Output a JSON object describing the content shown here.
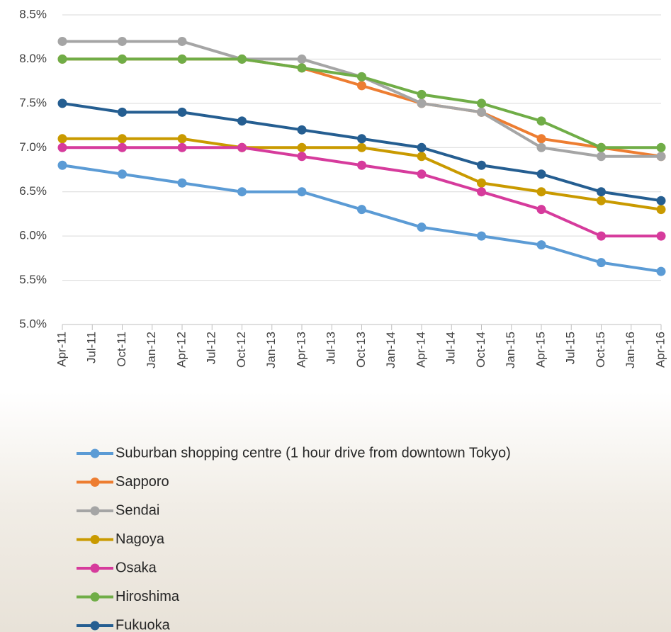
{
  "chart_data": {
    "type": "line",
    "x": [
      "Apr-11",
      "Oct-11",
      "Apr-12",
      "Oct-12",
      "Apr-13",
      "Oct-13",
      "Apr-14",
      "Oct-14",
      "Apr-15",
      "Oct-15",
      "Apr-16"
    ],
    "xticks": [
      "Apr-11",
      "Jul-11",
      "Oct-11",
      "Jan-12",
      "Apr-12",
      "Jul-12",
      "Oct-12",
      "Jan-13",
      "Apr-13",
      "Jul-13",
      "Oct-13",
      "Jan-14",
      "Apr-14",
      "Jul-14",
      "Oct-14",
      "Jan-15",
      "Apr-15",
      "Jul-15",
      "Oct-15",
      "Jan-16",
      "Apr-16"
    ],
    "ylim": [
      5.0,
      8.5
    ],
    "yticks": [
      {
        "value": 5.0,
        "label": "5.0%"
      },
      {
        "value": 5.5,
        "label": "5.5%"
      },
      {
        "value": 6.0,
        "label": "6.0%"
      },
      {
        "value": 6.5,
        "label": "6.5%"
      },
      {
        "value": 7.0,
        "label": "7.0%"
      },
      {
        "value": 7.5,
        "label": "7.5%"
      },
      {
        "value": 8.0,
        "label": "8.0%"
      },
      {
        "value": 8.5,
        "label": "8.5%"
      }
    ],
    "grid": true,
    "legend": "bottom",
    "series": [
      {
        "name": "Suburban shopping centre (1 hour drive from downtown Tokyo)",
        "color": "#5b9bd5",
        "values": [
          6.8,
          6.7,
          6.6,
          6.5,
          6.5,
          6.3,
          6.1,
          6.0,
          5.9,
          5.7,
          5.6
        ]
      },
      {
        "name": "Sapporo",
        "color": "#ed7d31",
        "values": [
          8.0,
          8.0,
          8.0,
          8.0,
          7.9,
          7.7,
          7.5,
          7.4,
          7.1,
          7.0,
          6.9
        ]
      },
      {
        "name": "Sendai",
        "color": "#a5a5a5",
        "values": [
          8.2,
          8.2,
          8.2,
          8.0,
          8.0,
          7.8,
          7.5,
          7.4,
          7.0,
          6.9,
          6.9
        ]
      },
      {
        "name": "Nagoya",
        "color": "#c99a00",
        "values": [
          7.1,
          7.1,
          7.1,
          7.0,
          7.0,
          7.0,
          6.9,
          6.6,
          6.5,
          6.4,
          6.3
        ]
      },
      {
        "name": "Osaka",
        "color": "#d63b9c",
        "values": [
          7.0,
          7.0,
          7.0,
          7.0,
          6.9,
          6.8,
          6.7,
          6.5,
          6.3,
          6.0,
          6.0
        ]
      },
      {
        "name": "Hiroshima",
        "color": "#70ad47",
        "values": [
          8.0,
          8.0,
          8.0,
          8.0,
          7.9,
          7.8,
          7.6,
          7.5,
          7.3,
          7.0,
          7.0
        ]
      },
      {
        "name": "Fukuoka",
        "color": "#255e91",
        "values": [
          7.5,
          7.4,
          7.4,
          7.3,
          7.2,
          7.1,
          7.0,
          6.8,
          6.7,
          6.5,
          6.4
        ]
      }
    ]
  }
}
